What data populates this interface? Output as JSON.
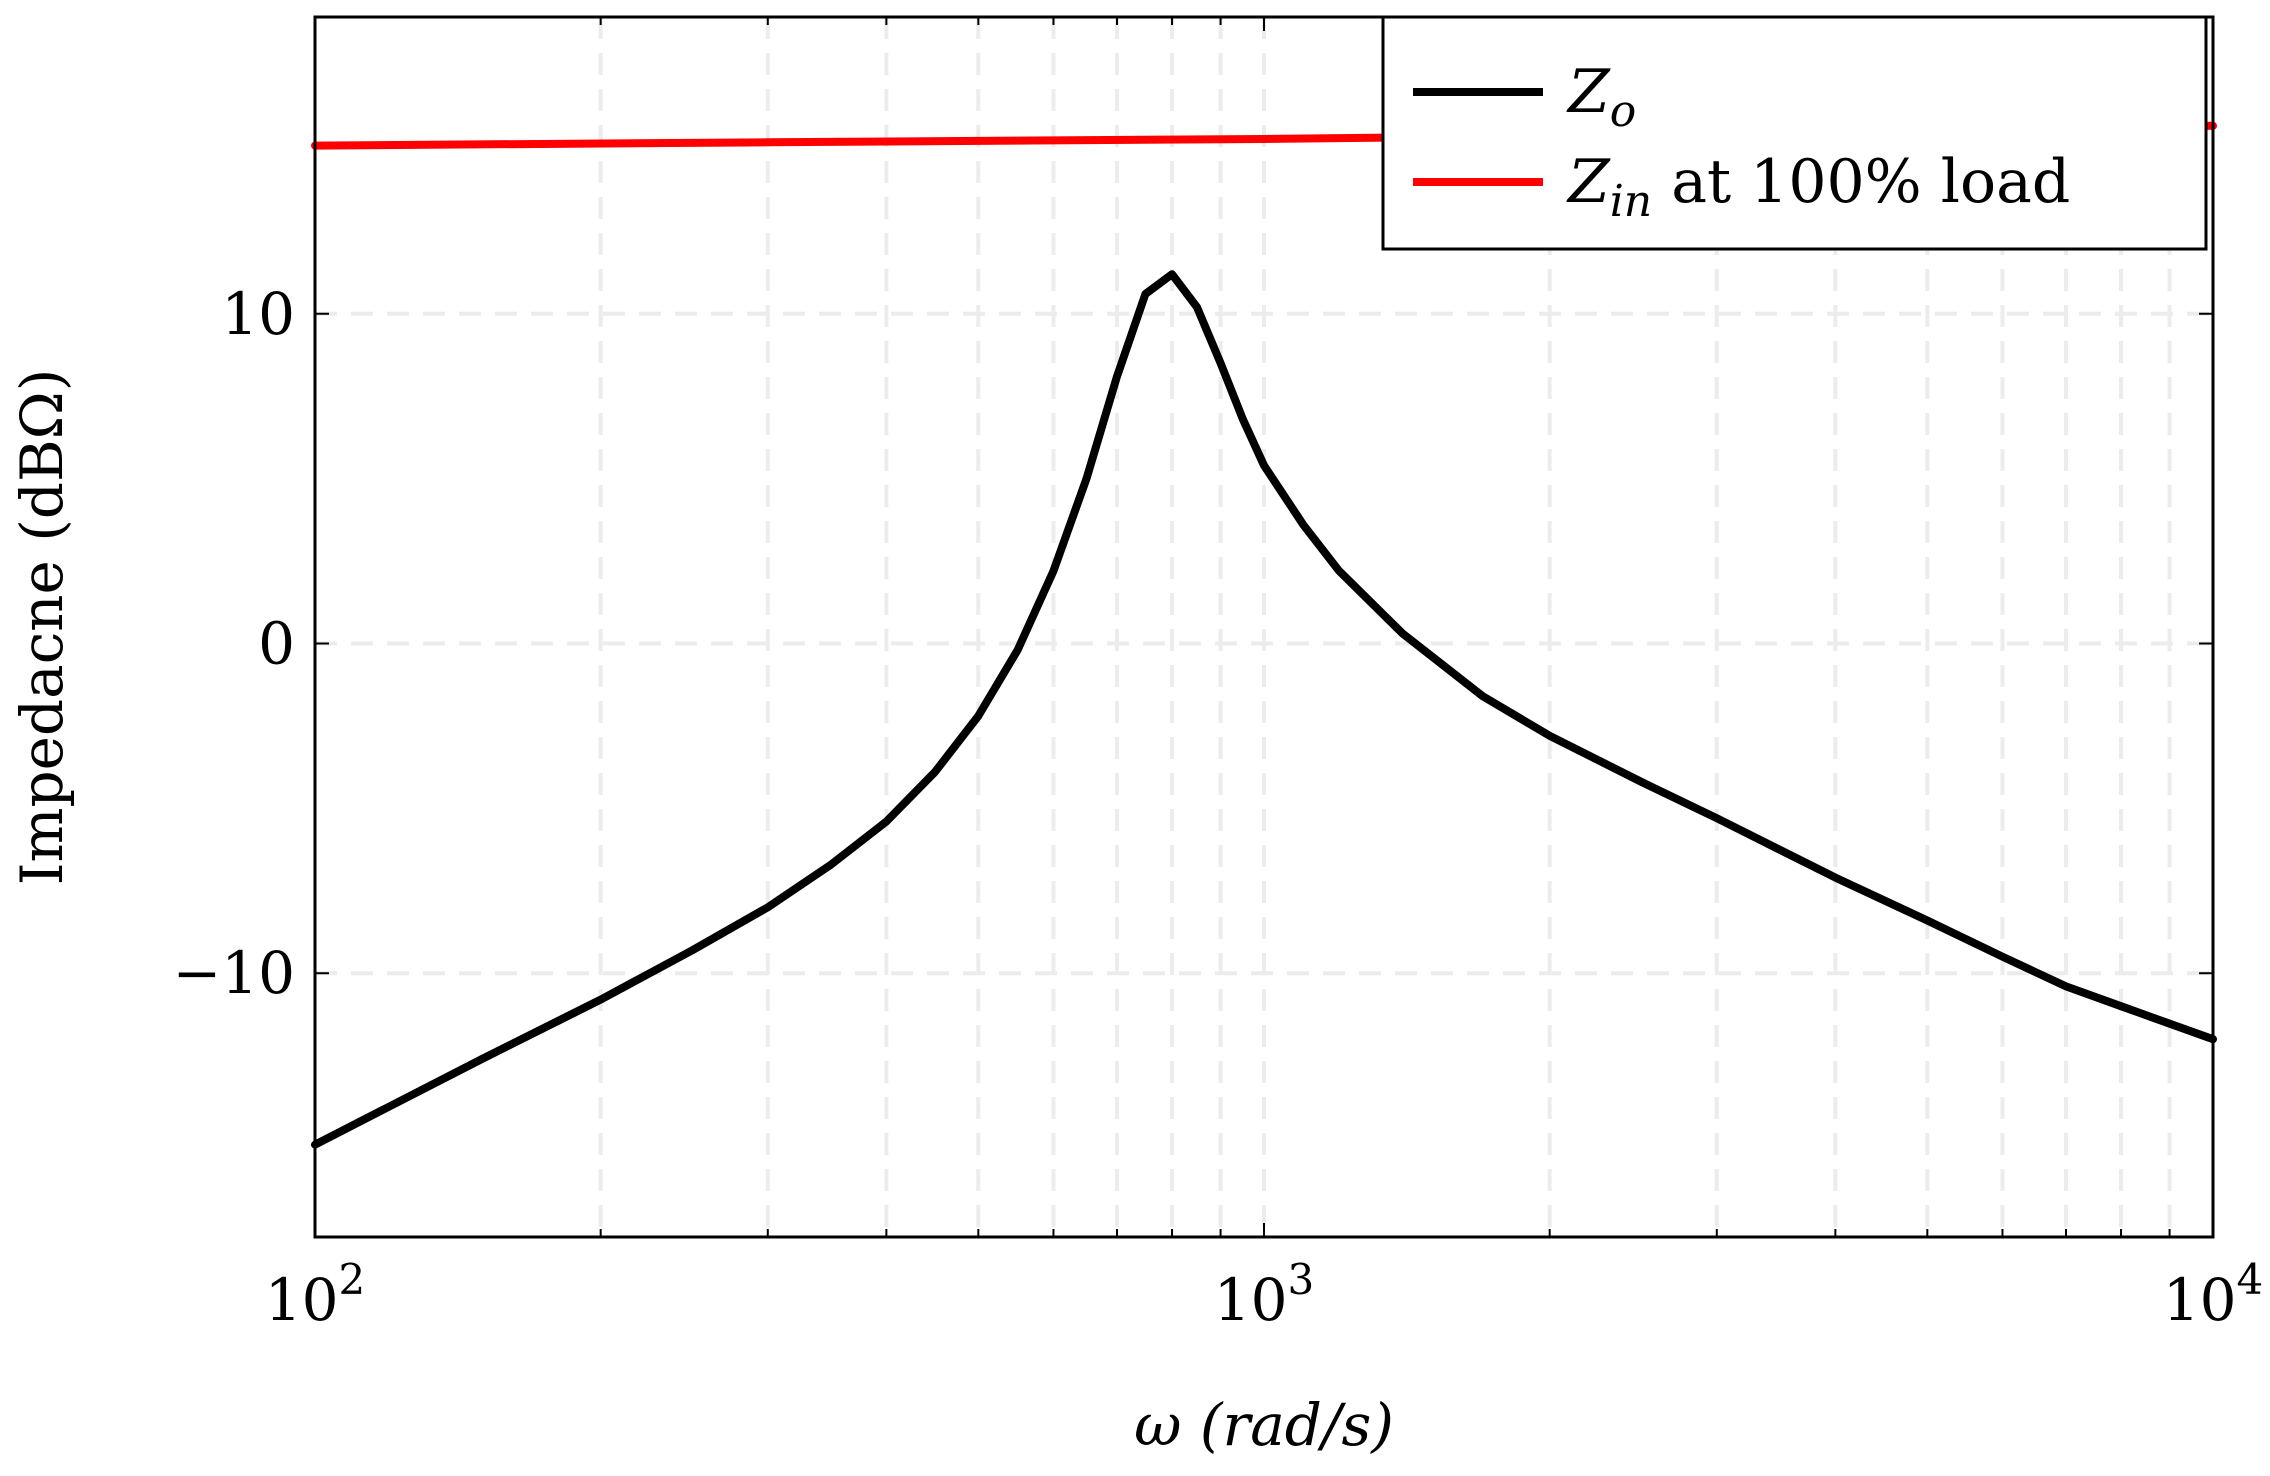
{
  "chart_data": {
    "type": "line",
    "xscale": "log",
    "xlabel": "ω (rad/s)",
    "ylabel": "Impedacne (dBΩ)",
    "xlim": [
      100,
      10000
    ],
    "ylim": [
      -18,
      19
    ],
    "xticks": [
      {
        "value": 100,
        "base": "10",
        "exp": "2"
      },
      {
        "value": 1000,
        "base": "10",
        "exp": "3"
      },
      {
        "value": 10000,
        "base": "10",
        "exp": "4"
      }
    ],
    "yticks": [
      {
        "value": -10,
        "label": "−10"
      },
      {
        "value": 0,
        "label": "0"
      },
      {
        "value": 10,
        "label": "10"
      }
    ],
    "grid": true,
    "legend_position": "top-right",
    "series": [
      {
        "name": "Z_o",
        "name_main": "Z",
        "name_sub": "o",
        "name_rest": "",
        "color": "#000000",
        "x": [
          100,
          150,
          200,
          250,
          300,
          350,
          400,
          450,
          500,
          550,
          600,
          650,
          700,
          750,
          800,
          850,
          900,
          950,
          1000,
          1100,
          1200,
          1400,
          1700,
          2000,
          2500,
          3000,
          4000,
          5000,
          6000,
          7000,
          8000,
          10000
        ],
        "y": [
          -15.2,
          -12.6,
          -10.8,
          -9.3,
          -8.0,
          -6.7,
          -5.4,
          -3.9,
          -2.2,
          -0.2,
          2.2,
          5.0,
          8.1,
          10.6,
          11.2,
          10.2,
          8.5,
          6.8,
          5.4,
          3.6,
          2.2,
          0.3,
          -1.6,
          -2.8,
          -4.2,
          -5.3,
          -7.1,
          -8.4,
          -9.5,
          -10.4,
          -11.0,
          -12.0
        ]
      },
      {
        "name": "Z_in at 100% load",
        "name_main": "Z",
        "name_sub": "in",
        "name_rest": " at 100% load",
        "color": "#ff0000",
        "x": [
          100,
          300,
          1000,
          3000,
          10000
        ],
        "y": [
          15.1,
          15.2,
          15.3,
          15.45,
          15.7
        ]
      }
    ]
  }
}
